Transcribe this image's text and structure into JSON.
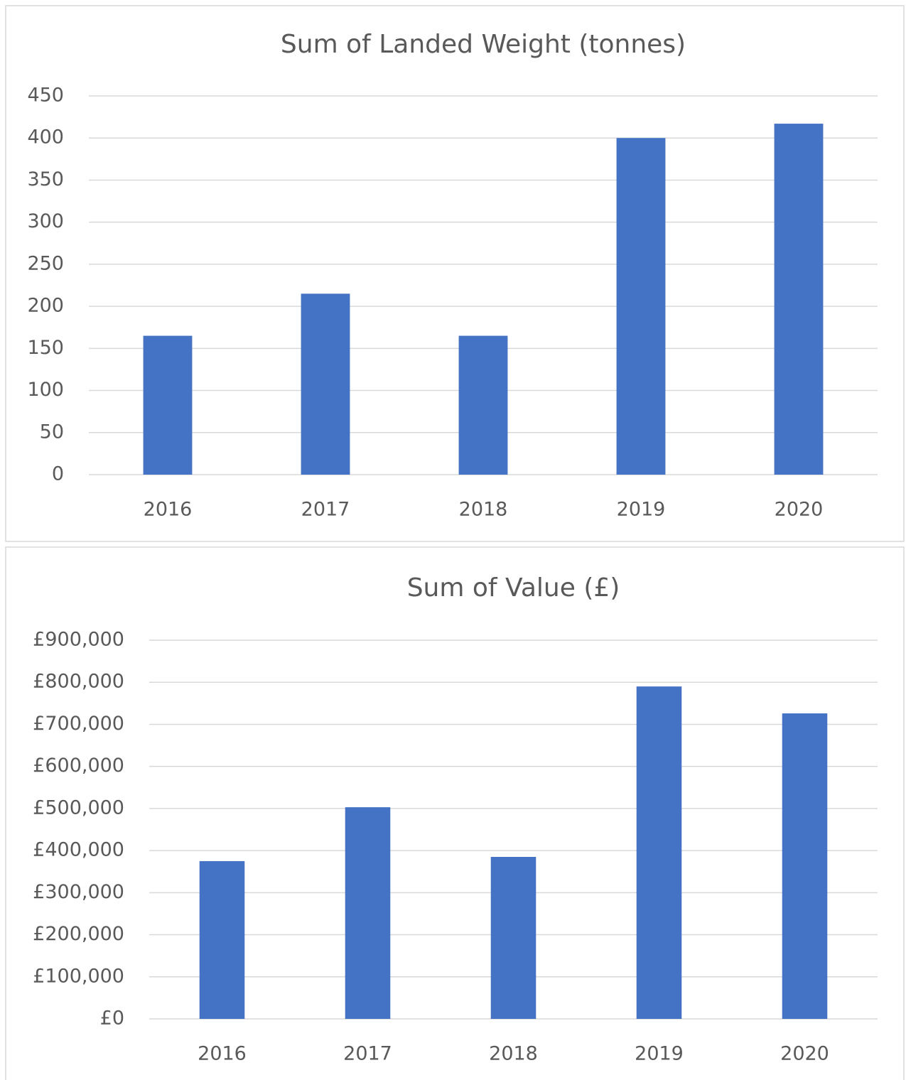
{
  "chart_data": [
    {
      "type": "bar",
      "title": "Sum of Landed Weight (tonnes)",
      "categories": [
        "2016",
        "2017",
        "2018",
        "2019",
        "2020"
      ],
      "values": [
        165,
        215,
        165,
        400,
        417
      ],
      "color": "#4472c4",
      "ylim": [
        0,
        450
      ],
      "yticks": [
        0,
        50,
        100,
        150,
        200,
        250,
        300,
        350,
        400,
        450
      ],
      "grid": true
    },
    {
      "type": "bar",
      "title": "Sum of Value (£)",
      "categories": [
        "2016",
        "2017",
        "2018",
        "2019",
        "2020"
      ],
      "values": [
        375000,
        503000,
        385000,
        790000,
        726000
      ],
      "color": "#4472c4",
      "ylim": [
        0,
        900000
      ],
      "yticks": [
        {
          "value": 0,
          "label": "£0"
        },
        {
          "value": 100000,
          "label": "£100,000"
        },
        {
          "value": 200000,
          "label": "£200,000"
        },
        {
          "value": 300000,
          "label": "£300,000"
        },
        {
          "value": 400000,
          "label": "£400,000"
        },
        {
          "value": 500000,
          "label": "£500,000"
        },
        {
          "value": 600000,
          "label": "£600,000"
        },
        {
          "value": 700000,
          "label": "£700,000"
        },
        {
          "value": 800000,
          "label": "£800,000"
        },
        {
          "value": 900000,
          "label": "£900,000"
        }
      ],
      "grid": true
    }
  ]
}
